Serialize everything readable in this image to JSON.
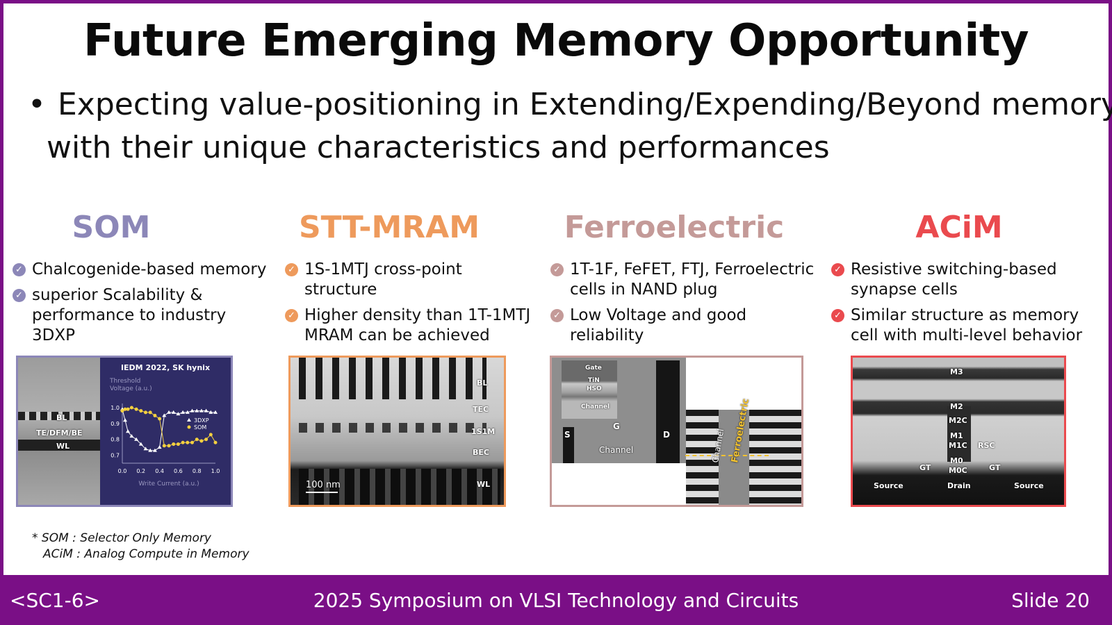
{
  "title": "Future Emerging Memory Opportunity",
  "bullet": {
    "symbol": "•",
    "line1": "Expecting value-positioning in Extending/Expending/Beyond memory",
    "line2": "with their unique characteristics and performances"
  },
  "columns": [
    {
      "title": "SOM",
      "color": "#8c87b8",
      "items": [
        "Chalcogenide-based memory",
        "superior Scalability & performance to industry 3DXP"
      ]
    },
    {
      "title": "STT-MRAM",
      "color": "#ee9a5c",
      "items": [
        "1S-1MTJ cross-point structure",
        "Higher density than 1T-1MTJ MRAM can be achieved"
      ]
    },
    {
      "title": "Ferroelectric",
      "color": "#c49a98",
      "items": [
        "1T-1F, FeFET, FTJ, Ferroelectric cells in NAND plug",
        "Low Voltage and good reliability"
      ]
    },
    {
      "title": "ACiM",
      "color": "#ea4a4e",
      "items": [
        "Resistive switching-based synapse cells",
        "Similar structure as memory cell with multi-level behavior"
      ]
    }
  ],
  "check_icon": "✓",
  "figures": {
    "som": {
      "labels": [
        "BL",
        "TE/DFM/BE",
        "WL"
      ],
      "chart_data": {
        "type": "line",
        "title": "IEDM 2022, SK hynix",
        "ylabel": "Threshold Voltage (a.u.)",
        "xlabel": "Write Current (a.u.)",
        "xlim": [
          0.0,
          1.0
        ],
        "ylim": [
          0.65,
          1.0
        ],
        "x_ticks": [
          "0.0",
          "0.2",
          "0.4",
          "0.6",
          "0.8",
          "1.0"
        ],
        "y_ticks": [
          "1.0",
          "0.9",
          "0.8",
          "0.7"
        ],
        "series": [
          {
            "name": "3DXP",
            "color": "#ffffff",
            "x": [
              0.0,
              0.03,
              0.06,
              0.1,
              0.15,
              0.2,
              0.25,
              0.3,
              0.35,
              0.4,
              0.45,
              0.5,
              0.55,
              0.6,
              0.65,
              0.7,
              0.75,
              0.8,
              0.85,
              0.9,
              0.95,
              1.0
            ],
            "y": [
              0.99,
              0.92,
              0.85,
              0.82,
              0.8,
              0.77,
              0.74,
              0.73,
              0.73,
              0.75,
              0.95,
              0.97,
              0.97,
              0.96,
              0.97,
              0.97,
              0.98,
              0.98,
              0.98,
              0.98,
              0.97,
              0.97
            ]
          },
          {
            "name": "SOM",
            "color": "#f4d03f",
            "x": [
              0.0,
              0.03,
              0.06,
              0.1,
              0.15,
              0.2,
              0.25,
              0.3,
              0.35,
              0.4,
              0.45,
              0.5,
              0.55,
              0.6,
              0.65,
              0.7,
              0.75,
              0.8,
              0.85,
              0.9,
              0.95,
              1.0
            ],
            "y": [
              0.98,
              0.99,
              0.99,
              1.0,
              0.99,
              0.98,
              0.97,
              0.97,
              0.95,
              0.93,
              0.76,
              0.76,
              0.77,
              0.77,
              0.78,
              0.78,
              0.78,
              0.8,
              0.79,
              0.8,
              0.83,
              0.78
            ]
          }
        ]
      }
    },
    "stt": {
      "labels": [
        "BL",
        "TEC",
        "1S1M",
        "BEC",
        "WL"
      ],
      "scale": "100 nm"
    },
    "fe": {
      "labels": [
        "Gate",
        "TiN",
        "HSO",
        "Channel",
        "S",
        "G",
        "D",
        "Channel"
      ],
      "rot_labels": [
        "Channel",
        "Ferroelectric"
      ]
    },
    "acim": {
      "labels": [
        "M3",
        "M2",
        "M2C",
        "M1",
        "M1C",
        "RSC",
        "M0",
        "M0C",
        "GT",
        "GT",
        "Source",
        "Drain",
        "Source"
      ]
    }
  },
  "footnote": {
    "line1": "* SOM : Selector Only Memory",
    "line2": "ACiM : Analog Compute in Memory"
  },
  "footer": {
    "session": "<SC1-6>",
    "conference": "2025 Symposium on VLSI Technology and Circuits",
    "slide": "Slide 20"
  },
  "colors": {
    "accent": "#7a0f86",
    "chart_bg": "#2f2c66"
  }
}
